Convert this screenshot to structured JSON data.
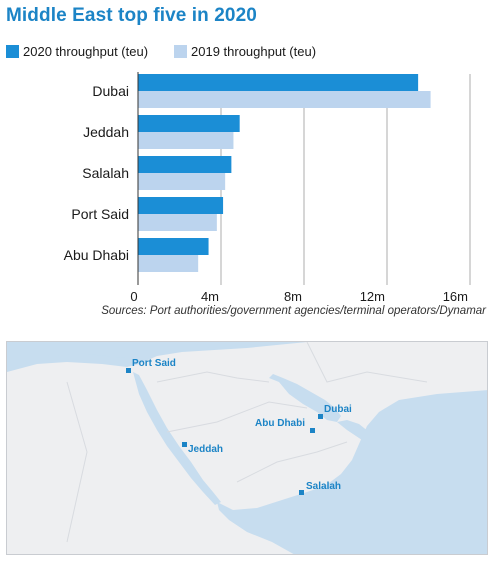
{
  "title": "Middle East top five in 2020",
  "colors": {
    "accent": "#1c84c6",
    "series2020": "#1b8ed6",
    "series2019": "#bcd4ee",
    "land": "#eeeff1",
    "sea": "#c7ddef"
  },
  "chart_data": {
    "type": "bar",
    "orientation": "horizontal",
    "title": "Middle East top five in 2020",
    "categories": [
      "Dubai",
      "Jeddah",
      "Salalah",
      "Port Said",
      "Abu Dhabi"
    ],
    "series": [
      {
        "name": "2020 throughput (teu)",
        "values": [
          13.5,
          4.9,
          4.5,
          4.1,
          3.4
        ]
      },
      {
        "name": "2019 throughput (teu)",
        "values": [
          14.1,
          4.6,
          4.2,
          3.8,
          2.9
        ]
      }
    ],
    "xticks": [
      {
        "value": 0,
        "label": "0"
      },
      {
        "value": 4,
        "label": "4m"
      },
      {
        "value": 8,
        "label": "8m"
      },
      {
        "value": 12,
        "label": "12m"
      },
      {
        "value": 16,
        "label": "16m"
      }
    ],
    "xlim": [
      0,
      16
    ],
    "grid": true,
    "legend_position": "top-left",
    "source": "Sources: Port authorities/government agencies/terminal operators/Dynamar"
  },
  "map": {
    "ports": [
      {
        "name": "Port Said"
      },
      {
        "name": "Jeddah"
      },
      {
        "name": "Abu Dhabi"
      },
      {
        "name": "Dubai"
      },
      {
        "name": "Salalah"
      }
    ]
  }
}
